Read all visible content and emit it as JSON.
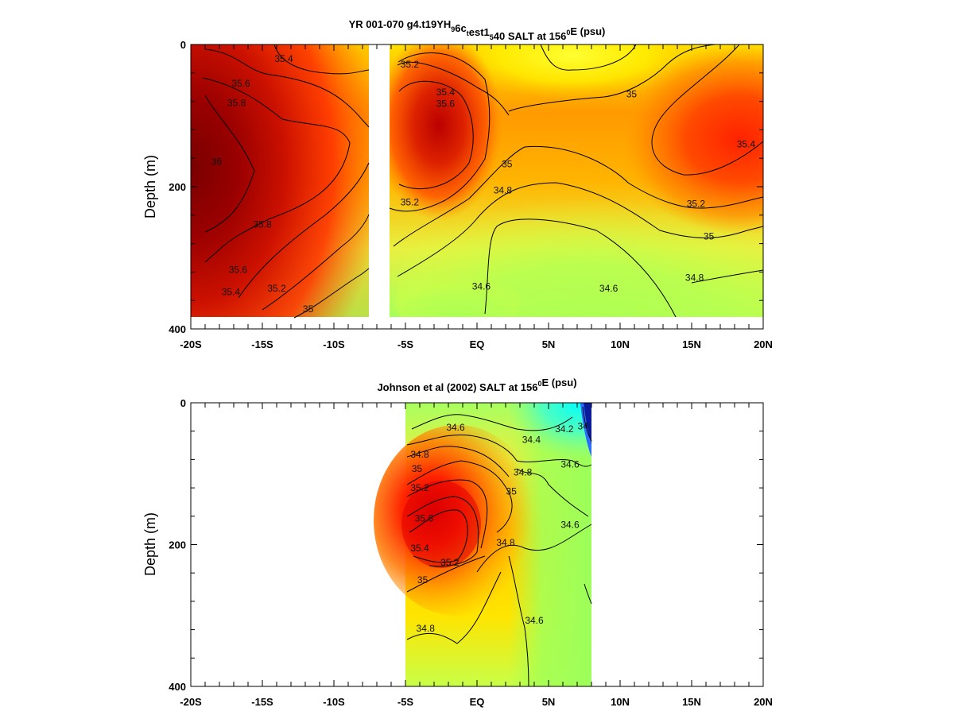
{
  "chart_data": [
    {
      "type": "heatmap",
      "title": "YR 001-070 g4.t19_YH_96c_test1_540 SALT at 156⁰E (psu)",
      "title_parts": [
        "YR 001-070 g4.t19",
        "Y",
        "H",
        "9",
        "6c",
        "t",
        "est1",
        "5",
        "40 SALT at 156",
        "0",
        "E (psu)"
      ],
      "xlabel": "",
      "ylabel": "Depth (m)",
      "xlim": [
        -20,
        20
      ],
      "ylim": [
        400,
        0
      ],
      "y_inverted": true,
      "x_tick_labels": [
        "-20S",
        "-15S",
        "-10S",
        "-5S",
        "EQ",
        "5N",
        "10N",
        "15N",
        "20N"
      ],
      "x_ticks": [
        -20,
        -15,
        -10,
        -5,
        0,
        5,
        10,
        15,
        20
      ],
      "y_tick_labels": [
        "0",
        "200",
        "400"
      ],
      "y_ticks": [
        0,
        200,
        400
      ],
      "data_x_range": [
        -20,
        20
      ],
      "data_depth_range": [
        0,
        385
      ],
      "missing_band_lat": [
        -7.5,
        -6.5
      ],
      "colorscale": [
        "#a6ff55",
        "#ffff00",
        "#ffa500",
        "#ff3300",
        "#8b0000"
      ],
      "color_range": [
        34.5,
        36.0
      ],
      "contour_levels": [
        34.6,
        34.8,
        35.0,
        35.2,
        35.4,
        35.6,
        35.8,
        36.0
      ],
      "contour_labels": [
        {
          "lat": -13.5,
          "depth": 20,
          "text": "35.4"
        },
        {
          "lat": -16.5,
          "depth": 55,
          "text": "35.6"
        },
        {
          "lat": -16.8,
          "depth": 82,
          "text": "35.8"
        },
        {
          "lat": -18.2,
          "depth": 165,
          "text": "36"
        },
        {
          "lat": -15.0,
          "depth": 253,
          "text": "35.8"
        },
        {
          "lat": -16.7,
          "depth": 317,
          "text": "35.6"
        },
        {
          "lat": -17.2,
          "depth": 348,
          "text": "35.4"
        },
        {
          "lat": -14.0,
          "depth": 343,
          "text": "35.2"
        },
        {
          "lat": -11.8,
          "depth": 372,
          "text": "35"
        },
        {
          "lat": -4.7,
          "depth": 28,
          "text": "35.2"
        },
        {
          "lat": -2.2,
          "depth": 67,
          "text": "35.4"
        },
        {
          "lat": -2.2,
          "depth": 83,
          "text": "35.6"
        },
        {
          "lat": 2.1,
          "depth": 168,
          "text": "35"
        },
        {
          "lat": 1.8,
          "depth": 205,
          "text": "34.8"
        },
        {
          "lat": -4.7,
          "depth": 222,
          "text": "35.2"
        },
        {
          "lat": 0.3,
          "depth": 340,
          "text": "34.6"
        },
        {
          "lat": 10.8,
          "depth": 70,
          "text": "35"
        },
        {
          "lat": 18.8,
          "depth": 140,
          "text": "35.4"
        },
        {
          "lat": 15.3,
          "depth": 224,
          "text": "35.2"
        },
        {
          "lat": 16.2,
          "depth": 270,
          "text": "35"
        },
        {
          "lat": 15.2,
          "depth": 328,
          "text": "34.8"
        },
        {
          "lat": 9.2,
          "depth": 343,
          "text": "34.6"
        }
      ]
    },
    {
      "type": "heatmap",
      "title": "Johnson et al (2002) SALT at 156⁰E (psu)",
      "title_parts": [
        "Johnson et al (2002) SALT at 156",
        "0",
        "E (psu)"
      ],
      "xlabel": "",
      "ylabel": "Depth (m)",
      "xlim": [
        -20,
        20
      ],
      "ylim": [
        400,
        0
      ],
      "y_inverted": true,
      "x_tick_labels": [
        "-20S",
        "-15S",
        "-10S",
        "-5S",
        "EQ",
        "5N",
        "10N",
        "15N",
        "20N"
      ],
      "x_ticks": [
        -20,
        -15,
        -10,
        -5,
        0,
        5,
        10,
        15,
        20
      ],
      "y_tick_labels": [
        "0",
        "200",
        "400"
      ],
      "y_ticks": [
        0,
        200,
        400
      ],
      "data_x_range": [
        -5,
        8
      ],
      "data_depth_range": [
        0,
        400
      ],
      "colorscale": [
        "#1a3cff",
        "#00ffff",
        "#a6ff55",
        "#ffff00",
        "#ffa500",
        "#ff3300",
        "#cc0000"
      ],
      "color_range": [
        34.0,
        35.8
      ],
      "contour_levels": [
        34.2,
        34.4,
        34.6,
        34.8,
        35.0,
        35.2,
        35.4,
        35.6
      ],
      "contour_labels": [
        {
          "lat": -1.5,
          "depth": 35,
          "text": "34.6"
        },
        {
          "lat": 3.8,
          "depth": 52,
          "text": "34.4"
        },
        {
          "lat": 6.1,
          "depth": 37,
          "text": "34.2"
        },
        {
          "lat": 7.4,
          "depth": 33,
          "text": "34"
        },
        {
          "lat": -4.0,
          "depth": 73,
          "text": "34.8"
        },
        {
          "lat": -4.2,
          "depth": 93,
          "text": "35"
        },
        {
          "lat": 3.2,
          "depth": 98,
          "text": "34.8"
        },
        {
          "lat": 6.5,
          "depth": 87,
          "text": "34.6"
        },
        {
          "lat": -4.0,
          "depth": 120,
          "text": "35.2"
        },
        {
          "lat": 2.4,
          "depth": 125,
          "text": "35"
        },
        {
          "lat": -3.7,
          "depth": 163,
          "text": "35.6"
        },
        {
          "lat": 6.5,
          "depth": 172,
          "text": "34.6"
        },
        {
          "lat": 2.0,
          "depth": 197,
          "text": "34.8"
        },
        {
          "lat": -4.0,
          "depth": 205,
          "text": "35.4"
        },
        {
          "lat": -1.9,
          "depth": 225,
          "text": "35.2"
        },
        {
          "lat": -3.8,
          "depth": 250,
          "text": "35"
        },
        {
          "lat": 4.0,
          "depth": 307,
          "text": "34.6"
        },
        {
          "lat": -3.6,
          "depth": 318,
          "text": "34.8"
        }
      ]
    }
  ]
}
